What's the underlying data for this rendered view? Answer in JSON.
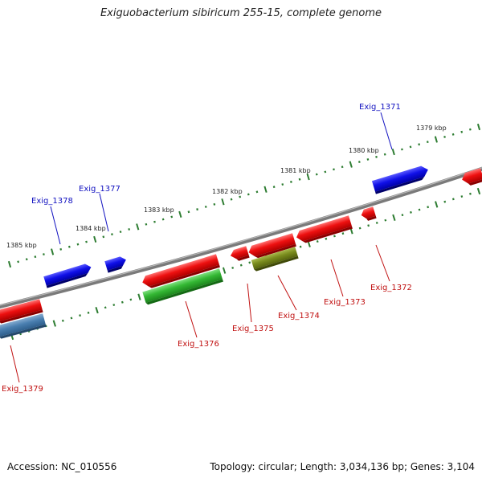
{
  "title": "Exiguobacterium sibiricum 255-15, complete genome",
  "footer": {
    "accession": "Accession: NC_010556",
    "topology": "Topology: circular; Length: 3,034,136 bp; Genes: 3,104"
  },
  "colors": {
    "backbone": "#808080",
    "ticks_major": "#2e7d32",
    "ticks_minor": "#2e7d32",
    "forward_gene": "#1010e0",
    "reverse_gene": "#e01010",
    "label_forward": "#1010c0",
    "label_reverse": "#c01010",
    "green_gene": "#3cb83c",
    "olive_gene": "#7a8c1e",
    "steel_gene": "#4a7fb0"
  },
  "ruler": {
    "labels": [
      "1379 kbp",
      "1380 kbp",
      "1381 kbp",
      "1382 kbp",
      "1383 kbp",
      "1384 kbp",
      "1385 kbp"
    ]
  },
  "genes": {
    "labels": [
      "Exig_1371",
      "Exig_1372",
      "Exig_1373",
      "Exig_1374",
      "Exig_1375",
      "Exig_1376",
      "Exig_1377",
      "Exig_1378",
      "Exig_1379"
    ]
  }
}
